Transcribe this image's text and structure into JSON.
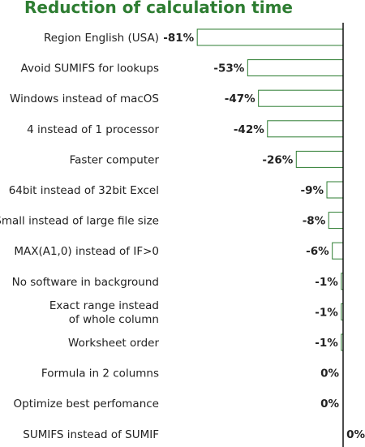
{
  "chart_data": {
    "type": "bar",
    "orientation": "horizontal",
    "title": "Reduction of calculation time",
    "categories": [
      [
        "Region English (USA)"
      ],
      [
        "Avoid SUMIFS for lookups"
      ],
      [
        "Windows instead of macOS"
      ],
      [
        "4 instead of 1 processor"
      ],
      [
        "Faster computer"
      ],
      [
        "64bit instead of 32bit Excel"
      ],
      [
        "Small instead of large file size"
      ],
      [
        "MAX(A1,0) instead of IF>0"
      ],
      [
        "No software in background"
      ],
      [
        "Exact range instead",
        "of whole column"
      ],
      [
        "Worksheet order"
      ],
      [
        "Formula in 2 columns"
      ],
      [
        "Optimize best perfomance"
      ],
      [
        "SUMIFS instead of SUMIF"
      ]
    ],
    "values": [
      -0.81,
      -0.53,
      -0.47,
      -0.42,
      -0.26,
      -0.09,
      -0.08,
      -0.06,
      -0.01,
      -0.01,
      -0.01,
      0.0,
      0.0,
      0.0
    ],
    "data_labels": [
      "-81%",
      "-53%",
      "-47%",
      "-42%",
      "-26%",
      "-9%",
      "-8%",
      "-6%",
      "-1%",
      "-1%",
      "-1%",
      "0%",
      "0%",
      "0%"
    ],
    "xlim": [
      -1,
      0
    ],
    "grid": false,
    "legend": "none",
    "bar_fill": "#ffffff",
    "bar_edge": "#2e7d32",
    "title_color": "#2e7d32"
  }
}
